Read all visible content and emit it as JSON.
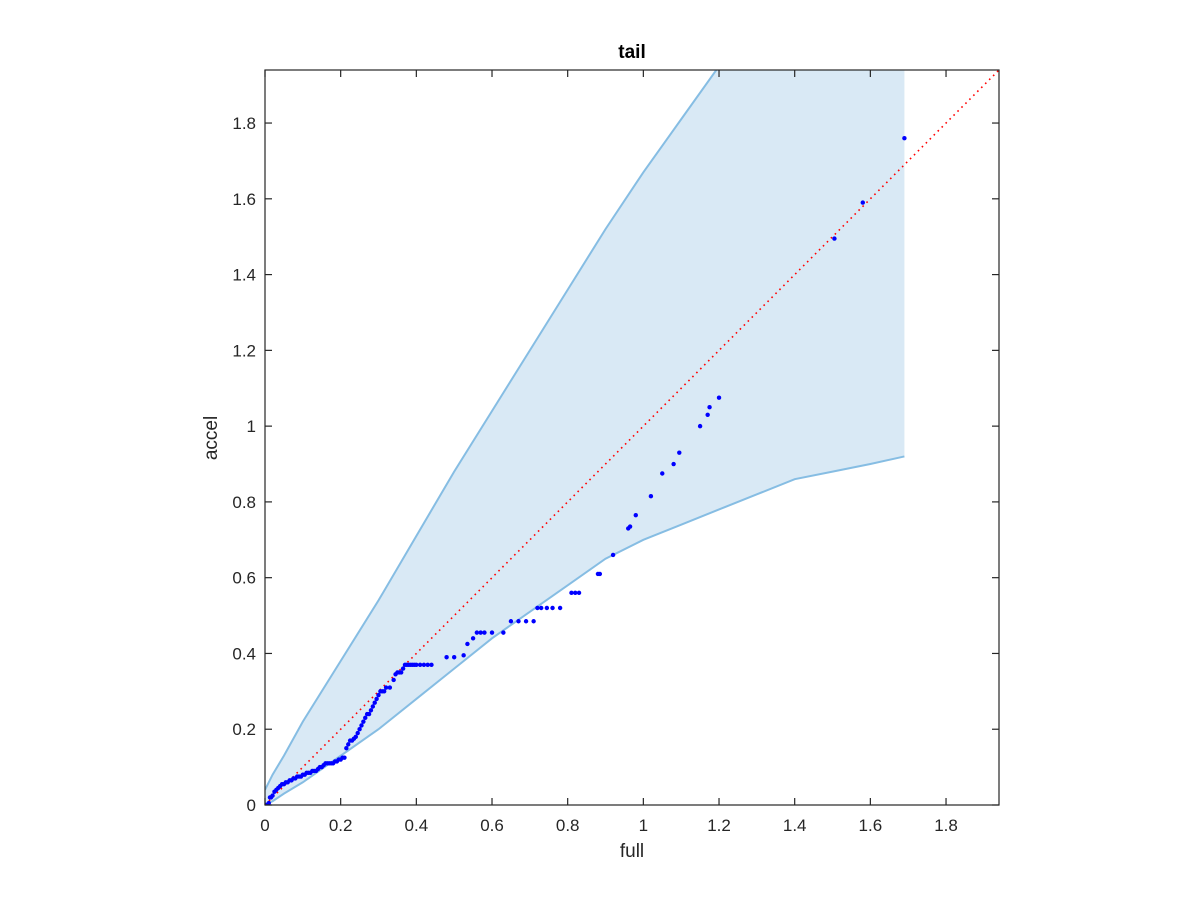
{
  "chart_data": {
    "type": "scatter",
    "title": "tail",
    "xlabel": "full",
    "ylabel": "accel",
    "xlim": [
      0,
      1.94
    ],
    "ylim": [
      0,
      1.94
    ],
    "xticks": [
      0,
      0.2,
      0.4,
      0.6,
      0.8,
      1,
      1.2,
      1.4,
      1.6,
      1.8
    ],
    "yticks": [
      0,
      0.2,
      0.4,
      0.6,
      0.8,
      1,
      1.2,
      1.4,
      1.6,
      1.8
    ],
    "xtick_labels": [
      "0",
      "0.2",
      "0.4",
      "0.6",
      "0.8",
      "1",
      "1.2",
      "1.4",
      "1.6",
      "1.8"
    ],
    "ytick_labels": [
      "0",
      "0.2",
      "0.4",
      "0.6",
      "0.8",
      "1",
      "1.2",
      "1.4",
      "1.6",
      "1.8"
    ],
    "grid": false,
    "colors": {
      "points": "#0000ff",
      "band_fill": "#d9e9f5",
      "band_edge": "#86bde3",
      "reference_line": "#ff0000",
      "axes": "#262626"
    },
    "confidence_band": {
      "upper": [
        [
          0,
          0.04
        ],
        [
          0.02,
          0.08
        ],
        [
          0.05,
          0.13
        ],
        [
          0.1,
          0.22
        ],
        [
          0.2,
          0.38
        ],
        [
          0.3,
          0.54
        ],
        [
          0.4,
          0.71
        ],
        [
          0.5,
          0.88
        ],
        [
          0.6,
          1.04
        ],
        [
          0.7,
          1.2
        ],
        [
          0.8,
          1.36
        ],
        [
          0.9,
          1.52
        ],
        [
          1.0,
          1.67
        ],
        [
          1.1,
          1.81
        ],
        [
          1.2,
          1.95
        ],
        [
          1.27,
          2.05
        ],
        [
          1.3,
          2.1
        ],
        [
          1.35,
          2.2
        ],
        [
          1.69,
          2.2
        ]
      ],
      "lower": [
        [
          0,
          0
        ],
        [
          0.02,
          0.01
        ],
        [
          0.05,
          0.03
        ],
        [
          0.1,
          0.06
        ],
        [
          0.2,
          0.13
        ],
        [
          0.3,
          0.2
        ],
        [
          0.4,
          0.28
        ],
        [
          0.5,
          0.36
        ],
        [
          0.6,
          0.44
        ],
        [
          0.7,
          0.51
        ],
        [
          0.8,
          0.58
        ],
        [
          0.9,
          0.65
        ],
        [
          1.0,
          0.7
        ],
        [
          1.1,
          0.74
        ],
        [
          1.2,
          0.78
        ],
        [
          1.3,
          0.82
        ],
        [
          1.4,
          0.86
        ],
        [
          1.5,
          0.88
        ],
        [
          1.6,
          0.9
        ],
        [
          1.69,
          0.92
        ]
      ]
    },
    "reference_line": {
      "style": "dotted",
      "points": [
        [
          0,
          0
        ],
        [
          1.94,
          1.94
        ]
      ]
    },
    "points": [
      [
        0,
        0
      ],
      [
        0.003,
        0
      ],
      [
        0.006,
        0
      ],
      [
        0.01,
        0.005
      ],
      [
        0.013,
        0.02
      ],
      [
        0.016,
        0.02
      ],
      [
        0.02,
        0.025
      ],
      [
        0.025,
        0.035
      ],
      [
        0.03,
        0.04
      ],
      [
        0.035,
        0.045
      ],
      [
        0.04,
        0.05
      ],
      [
        0.045,
        0.055
      ],
      [
        0.05,
        0.055
      ],
      [
        0.055,
        0.06
      ],
      [
        0.06,
        0.06
      ],
      [
        0.065,
        0.065
      ],
      [
        0.07,
        0.065
      ],
      [
        0.075,
        0.07
      ],
      [
        0.08,
        0.07
      ],
      [
        0.085,
        0.075
      ],
      [
        0.09,
        0.075
      ],
      [
        0.095,
        0.075
      ],
      [
        0.1,
        0.08
      ],
      [
        0.105,
        0.08
      ],
      [
        0.11,
        0.085
      ],
      [
        0.115,
        0.085
      ],
      [
        0.12,
        0.085
      ],
      [
        0.125,
        0.09
      ],
      [
        0.13,
        0.09
      ],
      [
        0.135,
        0.09
      ],
      [
        0.14,
        0.095
      ],
      [
        0.145,
        0.1
      ],
      [
        0.15,
        0.1
      ],
      [
        0.155,
        0.105
      ],
      [
        0.16,
        0.11
      ],
      [
        0.165,
        0.11
      ],
      [
        0.17,
        0.11
      ],
      [
        0.175,
        0.11
      ],
      [
        0.18,
        0.11
      ],
      [
        0.185,
        0.115
      ],
      [
        0.19,
        0.115
      ],
      [
        0.195,
        0.12
      ],
      [
        0.2,
        0.12
      ],
      [
        0.205,
        0.125
      ],
      [
        0.21,
        0.125
      ],
      [
        0.215,
        0.15
      ],
      [
        0.22,
        0.16
      ],
      [
        0.225,
        0.17
      ],
      [
        0.23,
        0.17
      ],
      [
        0.235,
        0.175
      ],
      [
        0.24,
        0.18
      ],
      [
        0.245,
        0.19
      ],
      [
        0.25,
        0.2
      ],
      [
        0.255,
        0.21
      ],
      [
        0.26,
        0.22
      ],
      [
        0.265,
        0.23
      ],
      [
        0.27,
        0.24
      ],
      [
        0.275,
        0.24
      ],
      [
        0.28,
        0.25
      ],
      [
        0.285,
        0.26
      ],
      [
        0.29,
        0.27
      ],
      [
        0.295,
        0.28
      ],
      [
        0.3,
        0.29
      ],
      [
        0.305,
        0.3
      ],
      [
        0.31,
        0.3
      ],
      [
        0.315,
        0.3
      ],
      [
        0.32,
        0.31
      ],
      [
        0.33,
        0.31
      ],
      [
        0.34,
        0.33
      ],
      [
        0.345,
        0.345
      ],
      [
        0.35,
        0.35
      ],
      [
        0.355,
        0.35
      ],
      [
        0.36,
        0.35
      ],
      [
        0.365,
        0.36
      ],
      [
        0.37,
        0.37
      ],
      [
        0.375,
        0.37
      ],
      [
        0.38,
        0.37
      ],
      [
        0.385,
        0.37
      ],
      [
        0.39,
        0.37
      ],
      [
        0.395,
        0.37
      ],
      [
        0.4,
        0.37
      ],
      [
        0.41,
        0.37
      ],
      [
        0.42,
        0.37
      ],
      [
        0.43,
        0.37
      ],
      [
        0.44,
        0.37
      ],
      [
        0.48,
        0.39
      ],
      [
        0.5,
        0.39
      ],
      [
        0.525,
        0.395
      ],
      [
        0.535,
        0.425
      ],
      [
        0.55,
        0.44
      ],
      [
        0.56,
        0.455
      ],
      [
        0.57,
        0.455
      ],
      [
        0.58,
        0.455
      ],
      [
        0.6,
        0.455
      ],
      [
        0.63,
        0.455
      ],
      [
        0.65,
        0.485
      ],
      [
        0.67,
        0.485
      ],
      [
        0.69,
        0.485
      ],
      [
        0.71,
        0.485
      ],
      [
        0.72,
        0.52
      ],
      [
        0.73,
        0.52
      ],
      [
        0.745,
        0.52
      ],
      [
        0.76,
        0.52
      ],
      [
        0.78,
        0.52
      ],
      [
        0.81,
        0.56
      ],
      [
        0.82,
        0.56
      ],
      [
        0.83,
        0.56
      ],
      [
        0.88,
        0.61
      ],
      [
        0.885,
        0.61
      ],
      [
        0.92,
        0.66
      ],
      [
        0.96,
        0.73
      ],
      [
        0.965,
        0.735
      ],
      [
        0.98,
        0.765
      ],
      [
        1.02,
        0.815
      ],
      [
        1.05,
        0.875
      ],
      [
        1.08,
        0.9
      ],
      [
        1.095,
        0.93
      ],
      [
        1.15,
        1.0
      ],
      [
        1.17,
        1.03
      ],
      [
        1.175,
        1.05
      ],
      [
        1.2,
        1.075
      ],
      [
        1.505,
        1.495
      ],
      [
        1.58,
        1.59
      ],
      [
        1.69,
        1.76
      ]
    ]
  }
}
